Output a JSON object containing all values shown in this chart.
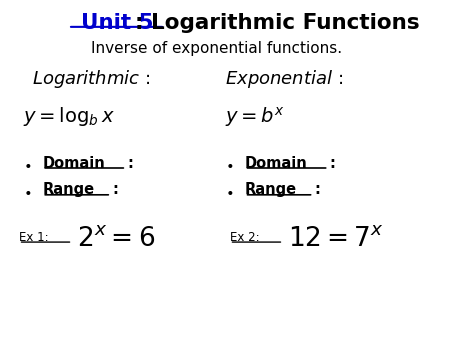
{
  "title_unit": "Unit 5",
  "title_rest": ": Logarithmic Functions",
  "subtitle": "Inverse of exponential functions.",
  "bg_color": "#ffffff",
  "unit5_color": "#0000cc",
  "text_color": "#000000"
}
